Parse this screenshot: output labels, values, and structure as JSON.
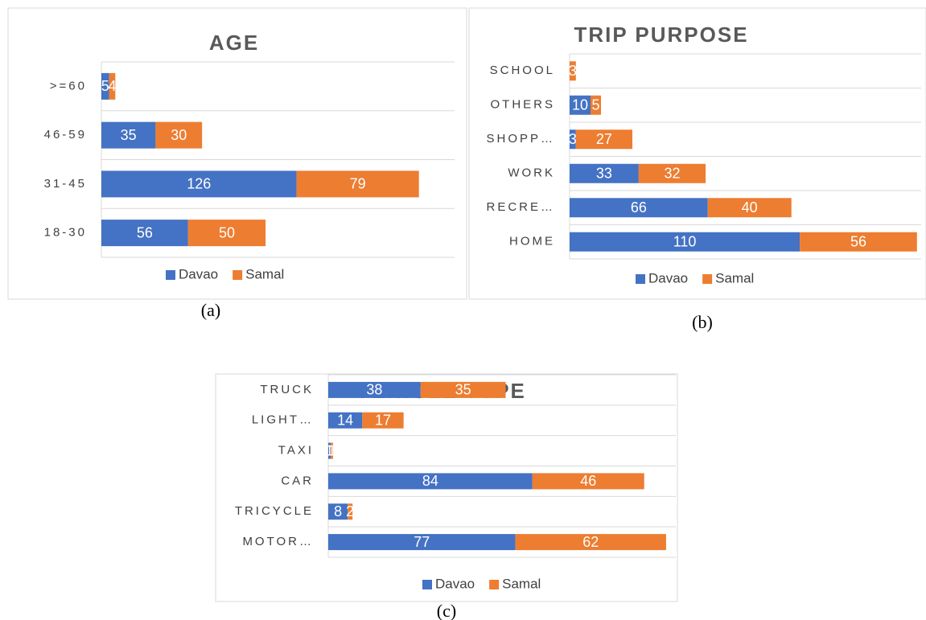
{
  "chart_data": [
    {
      "type": "stacked_bar_horizontal",
      "title": "AGE",
      "caption": "(a)",
      "categories": [
        ">=60",
        "46-59",
        "31-45",
        "18-30"
      ],
      "series": [
        {
          "name": "Davao",
          "color": "#4472c4",
          "values": [
            5,
            35,
            126,
            56
          ]
        },
        {
          "name": "Samal",
          "color": "#ed7d31",
          "values": [
            4,
            30,
            79,
            50
          ]
        }
      ],
      "xlim": [
        0,
        228
      ]
    },
    {
      "type": "stacked_bar_horizontal",
      "title": "TRIP PURPOSE",
      "caption": "(b)",
      "categories": [
        "SCHOOL",
        "OTHERS",
        "SHOPP…",
        "WORK",
        "RECRE…",
        "HOME"
      ],
      "series": [
        {
          "name": "Davao",
          "color": "#4472c4",
          "values": [
            0,
            10,
            3,
            33,
            66,
            110
          ]
        },
        {
          "name": "Samal",
          "color": "#ed7d31",
          "values": [
            3,
            5,
            27,
            32,
            40,
            56
          ]
        }
      ],
      "xlim": [
        0,
        168
      ]
    },
    {
      "type": "stacked_bar_horizontal",
      "title": "VEHICLE TYPE",
      "caption": "(c)",
      "categories": [
        "TRUCK",
        "LIGHT…",
        "TAXI",
        "CAR",
        "TRICYCLE",
        "MOTOR…"
      ],
      "series": [
        {
          "name": "Davao",
          "color": "#4472c4",
          "values": [
            38,
            14,
            1,
            84,
            8,
            77
          ]
        },
        {
          "name": "Samal",
          "color": "#ed7d31",
          "values": [
            35,
            17,
            1,
            46,
            2,
            62
          ]
        }
      ],
      "xlim": [
        0,
        143
      ]
    }
  ]
}
